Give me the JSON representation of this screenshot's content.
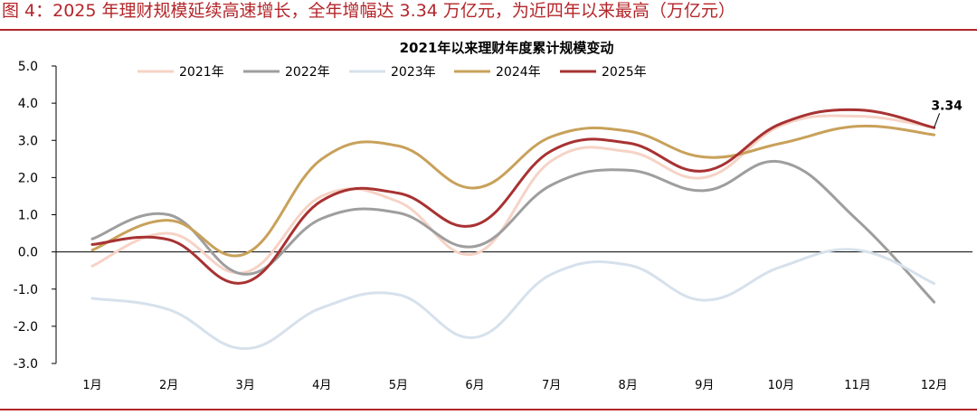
{
  "caption": "图 4：2025 年理财规模延续高速增长，全年增幅达 3.34 万亿元，为近四年以来最高（万亿元）",
  "chart_data": {
    "type": "line",
    "title": "2021年以来理财年度累计规模变动",
    "categories": [
      "1月",
      "2月",
      "3月",
      "4月",
      "5月",
      "6月",
      "7月",
      "8月",
      "9月",
      "10月",
      "11月",
      "12月"
    ],
    "ylim": [
      -3.0,
      5.0
    ],
    "yticks": [
      "5.0",
      "4.0",
      "3.0",
      "2.0",
      "1.0",
      "0.0",
      "-1.0",
      "-2.0",
      "-3.0"
    ],
    "grid": false,
    "legend_position": "top",
    "series": [
      {
        "name": "2021年",
        "color": "#f6d3c6",
        "values": [
          -0.38,
          0.5,
          -0.55,
          1.5,
          1.35,
          -0.05,
          2.45,
          2.7,
          2.0,
          3.4,
          3.65,
          3.35
        ]
      },
      {
        "name": "2022年",
        "color": "#9e9e9e",
        "values": [
          0.35,
          1.0,
          -0.6,
          0.9,
          1.05,
          0.15,
          1.8,
          2.2,
          1.65,
          2.42,
          0.85,
          -1.35
        ]
      },
      {
        "name": "2023年",
        "color": "#d6e1ec",
        "values": [
          -1.25,
          -1.55,
          -2.6,
          -1.5,
          -1.15,
          -2.3,
          -0.6,
          -0.35,
          -1.3,
          -0.4,
          0.05,
          -0.85
        ]
      },
      {
        "name": "2024年",
        "color": "#c8a15a",
        "values": [
          0.05,
          0.85,
          -0.05,
          2.5,
          2.85,
          1.72,
          3.1,
          3.25,
          2.55,
          2.92,
          3.38,
          3.15
        ]
      },
      {
        "name": "2025年",
        "color": "#a83232",
        "values": [
          0.2,
          0.33,
          -0.82,
          1.38,
          1.58,
          0.72,
          2.72,
          2.93,
          2.18,
          3.45,
          3.82,
          3.34
        ]
      }
    ],
    "annotations": [
      {
        "series": "2025年",
        "index": 11,
        "text": "3.34"
      }
    ]
  }
}
